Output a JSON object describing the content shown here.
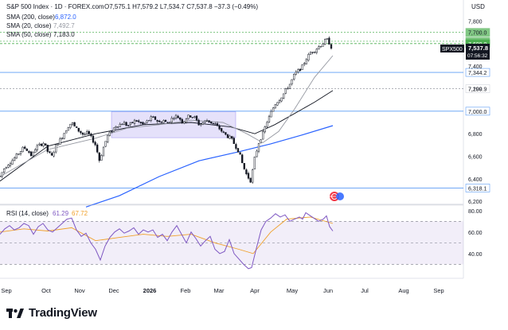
{
  "header": {
    "title": "S&P 500 Index · 1D · FOREX.com",
    "ohlc_text": "O7,575.1 H7,579.2 L7,534.7 C7,537.8 −37.3 (−0.49%)",
    "currency": "USD",
    "indicators": [
      {
        "label": "SMA (200, close)",
        "value": "6,872.0",
        "color": "#2962ff"
      },
      {
        "label": "SMA (20, close)",
        "value": "7,492.7",
        "color": "#9598a1"
      },
      {
        "label": "SMA (50, close)",
        "value": "7,183.0",
        "color": "#131722"
      }
    ]
  },
  "price_badge": {
    "symbol": "SPX500",
    "price": "7,537.8",
    "countdown": "07:56:32"
  },
  "rsi_header": {
    "label": "RSI (14, close)",
    "rsi": "61.29",
    "rsi_ma": "67.72"
  },
  "brand": {
    "logo": "tradingview-logo-icon",
    "name": "TradingView"
  },
  "chart_data": {
    "type": "candlestick",
    "x_ticks": [
      "Sep",
      "Oct",
      "Nov",
      "Dec",
      "2026",
      "Feb",
      "Mar",
      "Apr",
      "May",
      "Jun",
      "Jul",
      "Aug",
      "Sep"
    ],
    "y_ticks": [
      "7,800",
      "7,400",
      "7,200",
      "6,800",
      "6,600",
      "6,400",
      "6,200"
    ],
    "y_range": [
      6180,
      7860
    ],
    "horizontal_levels": [
      {
        "value": 7700,
        "label": "7,700.0",
        "style": "green-box"
      },
      {
        "value": 7620.8,
        "label": "7,620.8",
        "style": "green-box"
      },
      {
        "value": 7600,
        "label": "7,600.0",
        "style": "green-solid"
      },
      {
        "value": 7344.2,
        "label": "7,344.2",
        "style": "blue-line"
      },
      {
        "value": 7199.9,
        "label": "7,199.9",
        "style": "plain"
      },
      {
        "value": 7000,
        "label": "7,000.0",
        "style": "blue-line"
      },
      {
        "value": 6318.1,
        "label": "6,318.1",
        "style": "blue-line"
      }
    ],
    "consolidation_zone": {
      "from": "Dec",
      "to": "Feb",
      "low": 6765,
      "high": 6995
    },
    "price_path": [
      [
        0,
        6420
      ],
      [
        5,
        6490
      ],
      [
        10,
        6530
      ],
      [
        15,
        6560
      ],
      [
        20,
        6600
      ],
      [
        25,
        6640
      ],
      [
        30,
        6680
      ],
      [
        35,
        6650
      ],
      [
        40,
        6600
      ],
      [
        45,
        6680
      ],
      [
        50,
        6700
      ],
      [
        55,
        6720
      ],
      [
        60,
        6640
      ],
      [
        65,
        6600
      ],
      [
        70,
        6690
      ],
      [
        75,
        6740
      ],
      [
        80,
        6800
      ],
      [
        85,
        6860
      ],
      [
        90,
        6900
      ],
      [
        95,
        6850
      ],
      [
        100,
        6820
      ],
      [
        105,
        6790
      ],
      [
        110,
        6810
      ],
      [
        115,
        6760
      ],
      [
        120,
        6700
      ],
      [
        125,
        6560
      ],
      [
        130,
        6680
      ],
      [
        135,
        6780
      ],
      [
        140,
        6820
      ],
      [
        145,
        6870
      ],
      [
        150,
        6880
      ],
      [
        155,
        6900
      ],
      [
        160,
        6870
      ],
      [
        165,
        6890
      ],
      [
        170,
        6920
      ],
      [
        175,
        6900
      ],
      [
        180,
        6880
      ],
      [
        185,
        6910
      ],
      [
        190,
        6940
      ],
      [
        195,
        6930
      ],
      [
        200,
        6900
      ],
      [
        205,
        6920
      ],
      [
        210,
        6890
      ],
      [
        215,
        6930
      ],
      [
        220,
        6960
      ],
      [
        225,
        6940
      ],
      [
        230,
        6900
      ],
      [
        235,
        6950
      ],
      [
        240,
        6960
      ],
      [
        245,
        6940
      ],
      [
        250,
        6880
      ],
      [
        255,
        6900
      ],
      [
        260,
        6920
      ],
      [
        265,
        6900
      ],
      [
        270,
        6880
      ],
      [
        275,
        6850
      ],
      [
        280,
        6810
      ],
      [
        285,
        6780
      ],
      [
        290,
        6760
      ],
      [
        295,
        6700
      ],
      [
        300,
        6640
      ],
      [
        305,
        6520
      ],
      [
        310,
        6430
      ],
      [
        315,
        6380
      ],
      [
        320,
        6590
      ],
      [
        325,
        6720
      ],
      [
        330,
        6800
      ],
      [
        335,
        6900
      ],
      [
        340,
        6980
      ],
      [
        345,
        7060
      ],
      [
        350,
        7100
      ],
      [
        355,
        7140
      ],
      [
        360,
        7200
      ],
      [
        365,
        7250
      ],
      [
        370,
        7330
      ],
      [
        375,
        7360
      ],
      [
        380,
        7400
      ],
      [
        385,
        7470
      ],
      [
        390,
        7520
      ],
      [
        395,
        7540
      ],
      [
        400,
        7570
      ],
      [
        405,
        7600
      ],
      [
        410,
        7640
      ],
      [
        414,
        7600
      ],
      [
        418,
        7538
      ]
    ],
    "rsi_axis_ticks": [
      "80.00",
      "60.00",
      "40.00"
    ],
    "rsi_levels": {
      "upper": 70,
      "middle": 50,
      "lower": 30
    },
    "rsi_path": [
      [
        0,
        58
      ],
      [
        6,
        63
      ],
      [
        12,
        66
      ],
      [
        18,
        62
      ],
      [
        24,
        64
      ],
      [
        30,
        68
      ],
      [
        36,
        66
      ],
      [
        42,
        58
      ],
      [
        48,
        65
      ],
      [
        54,
        68
      ],
      [
        60,
        62
      ],
      [
        66,
        60
      ],
      [
        72,
        64
      ],
      [
        78,
        68
      ],
      [
        84,
        72
      ],
      [
        90,
        73
      ],
      [
        96,
        62
      ],
      [
        102,
        56
      ],
      [
        108,
        59
      ],
      [
        114,
        50
      ],
      [
        120,
        44
      ],
      [
        126,
        34
      ],
      [
        132,
        47
      ],
      [
        138,
        55
      ],
      [
        144,
        60
      ],
      [
        150,
        63
      ],
      [
        156,
        59
      ],
      [
        162,
        61
      ],
      [
        168,
        64
      ],
      [
        174,
        58
      ],
      [
        180,
        62
      ],
      [
        186,
        60
      ],
      [
        192,
        62
      ],
      [
        198,
        55
      ],
      [
        204,
        58
      ],
      [
        210,
        52
      ],
      [
        216,
        60
      ],
      [
        222,
        66
      ],
      [
        228,
        58
      ],
      [
        234,
        50
      ],
      [
        240,
        60
      ],
      [
        246,
        54
      ],
      [
        252,
        47
      ],
      [
        258,
        52
      ],
      [
        264,
        56
      ],
      [
        270,
        44
      ],
      [
        276,
        40
      ],
      [
        282,
        42
      ],
      [
        288,
        53
      ],
      [
        294,
        40
      ],
      [
        300,
        35
      ],
      [
        306,
        30
      ],
      [
        312,
        26
      ],
      [
        316,
        27
      ],
      [
        322,
        45
      ],
      [
        328,
        62
      ],
      [
        334,
        70
      ],
      [
        340,
        73
      ],
      [
        346,
        77
      ],
      [
        352,
        74
      ],
      [
        358,
        76
      ],
      [
        364,
        70
      ],
      [
        370,
        72
      ],
      [
        376,
        74
      ],
      [
        380,
        72
      ],
      [
        384,
        78
      ],
      [
        388,
        76
      ],
      [
        394,
        73
      ],
      [
        400,
        70
      ],
      [
        406,
        72
      ],
      [
        410,
        75
      ],
      [
        414,
        65
      ],
      [
        418,
        61
      ]
    ],
    "rsi_ma_path": [
      [
        0,
        60
      ],
      [
        30,
        63
      ],
      [
        60,
        61
      ],
      [
        90,
        64
      ],
      [
        120,
        52
      ],
      [
        150,
        55
      ],
      [
        180,
        58
      ],
      [
        210,
        56
      ],
      [
        240,
        58
      ],
      [
        270,
        50
      ],
      [
        300,
        44
      ],
      [
        318,
        40
      ],
      [
        340,
        60
      ],
      [
        360,
        72
      ],
      [
        390,
        74
      ],
      [
        418,
        68
      ]
    ],
    "sma50_path": [
      [
        0,
        6380
      ],
      [
        60,
        6690
      ],
      [
        120,
        6800
      ],
      [
        180,
        6880
      ],
      [
        240,
        6900
      ],
      [
        290,
        6860
      ],
      [
        320,
        6800
      ],
      [
        345,
        6880
      ],
      [
        370,
        6980
      ],
      [
        395,
        7080
      ],
      [
        418,
        7183
      ]
    ],
    "sma20_path": [
      [
        0,
        6420
      ],
      [
        60,
        6660
      ],
      [
        120,
        6760
      ],
      [
        160,
        6850
      ],
      [
        200,
        6880
      ],
      [
        240,
        6920
      ],
      [
        280,
        6900
      ],
      [
        310,
        6800
      ],
      [
        330,
        6720
      ],
      [
        350,
        6820
      ],
      [
        370,
        7020
      ],
      [
        395,
        7300
      ],
      [
        418,
        7493
      ]
    ],
    "sma200_path": [
      [
        108,
        6150
      ],
      [
        150,
        6250
      ],
      [
        200,
        6420
      ],
      [
        250,
        6560
      ],
      [
        300,
        6640
      ],
      [
        340,
        6710
      ],
      [
        380,
        6790
      ],
      [
        418,
        6872
      ]
    ]
  }
}
